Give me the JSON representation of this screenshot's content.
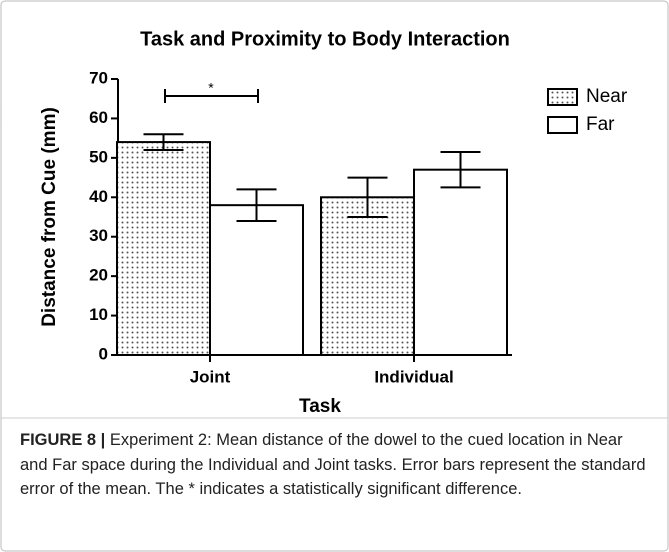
{
  "chart_data": {
    "type": "bar",
    "title": "Task and Proximity to Body Interaction",
    "x_label": "Task",
    "y_label": "Distance from Cue (mm)",
    "categories": [
      "Joint",
      "Individual"
    ],
    "series": [
      {
        "name": "Near",
        "color": "#555555",
        "values": [
          54,
          40
        ],
        "errors": [
          2,
          5
        ]
      },
      {
        "name": "Far",
        "color": "#ffffff",
        "values": [
          38,
          47
        ],
        "errors": [
          4,
          4.5
        ]
      }
    ],
    "ylim": [
      0,
      70
    ],
    "yticks": [
      0,
      10,
      20,
      30,
      40,
      50,
      60,
      70
    ],
    "annotation": "*",
    "legend": "upper right"
  },
  "figure_label": "FIGURE 8 |",
  "caption": "Experiment 2: Mean distance of the dowel to the cued location in Near and Far space during the Individual and Joint tasks. Error bars represent the standard error of the mean. The * indicates a statistically significant difference."
}
